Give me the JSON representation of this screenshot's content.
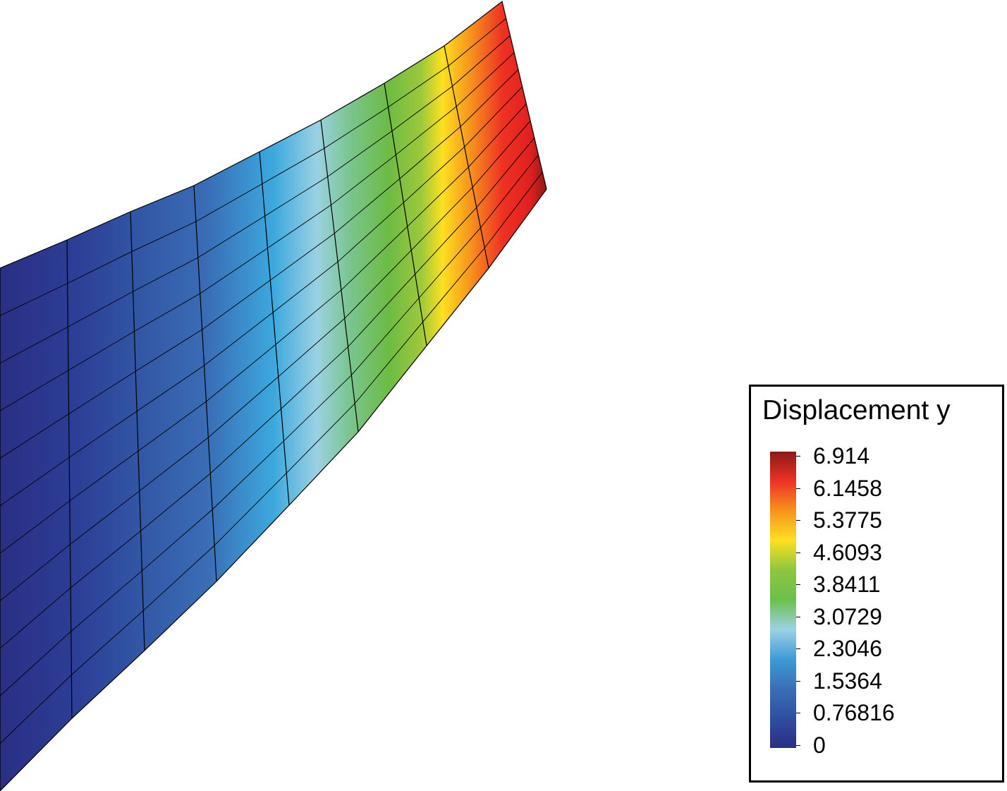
{
  "legend": {
    "title": "Displacement y",
    "ticks": [
      "6.914",
      "6.1458",
      "5.3775",
      "4.6093",
      "3.8411",
      "3.0729",
      "2.3046",
      "1.5364",
      "0.76816",
      "0"
    ],
    "max": 6.914,
    "min": 0
  },
  "colormap": [
    "#2a2f84",
    "#2f4ea0",
    "#3a6fb5",
    "#3d9bd7",
    "#9dd2e4",
    "#6cbf4d",
    "#8dc63f",
    "#fde021",
    "#f7941d",
    "#ee3124",
    "#8b1a1a"
  ]
}
